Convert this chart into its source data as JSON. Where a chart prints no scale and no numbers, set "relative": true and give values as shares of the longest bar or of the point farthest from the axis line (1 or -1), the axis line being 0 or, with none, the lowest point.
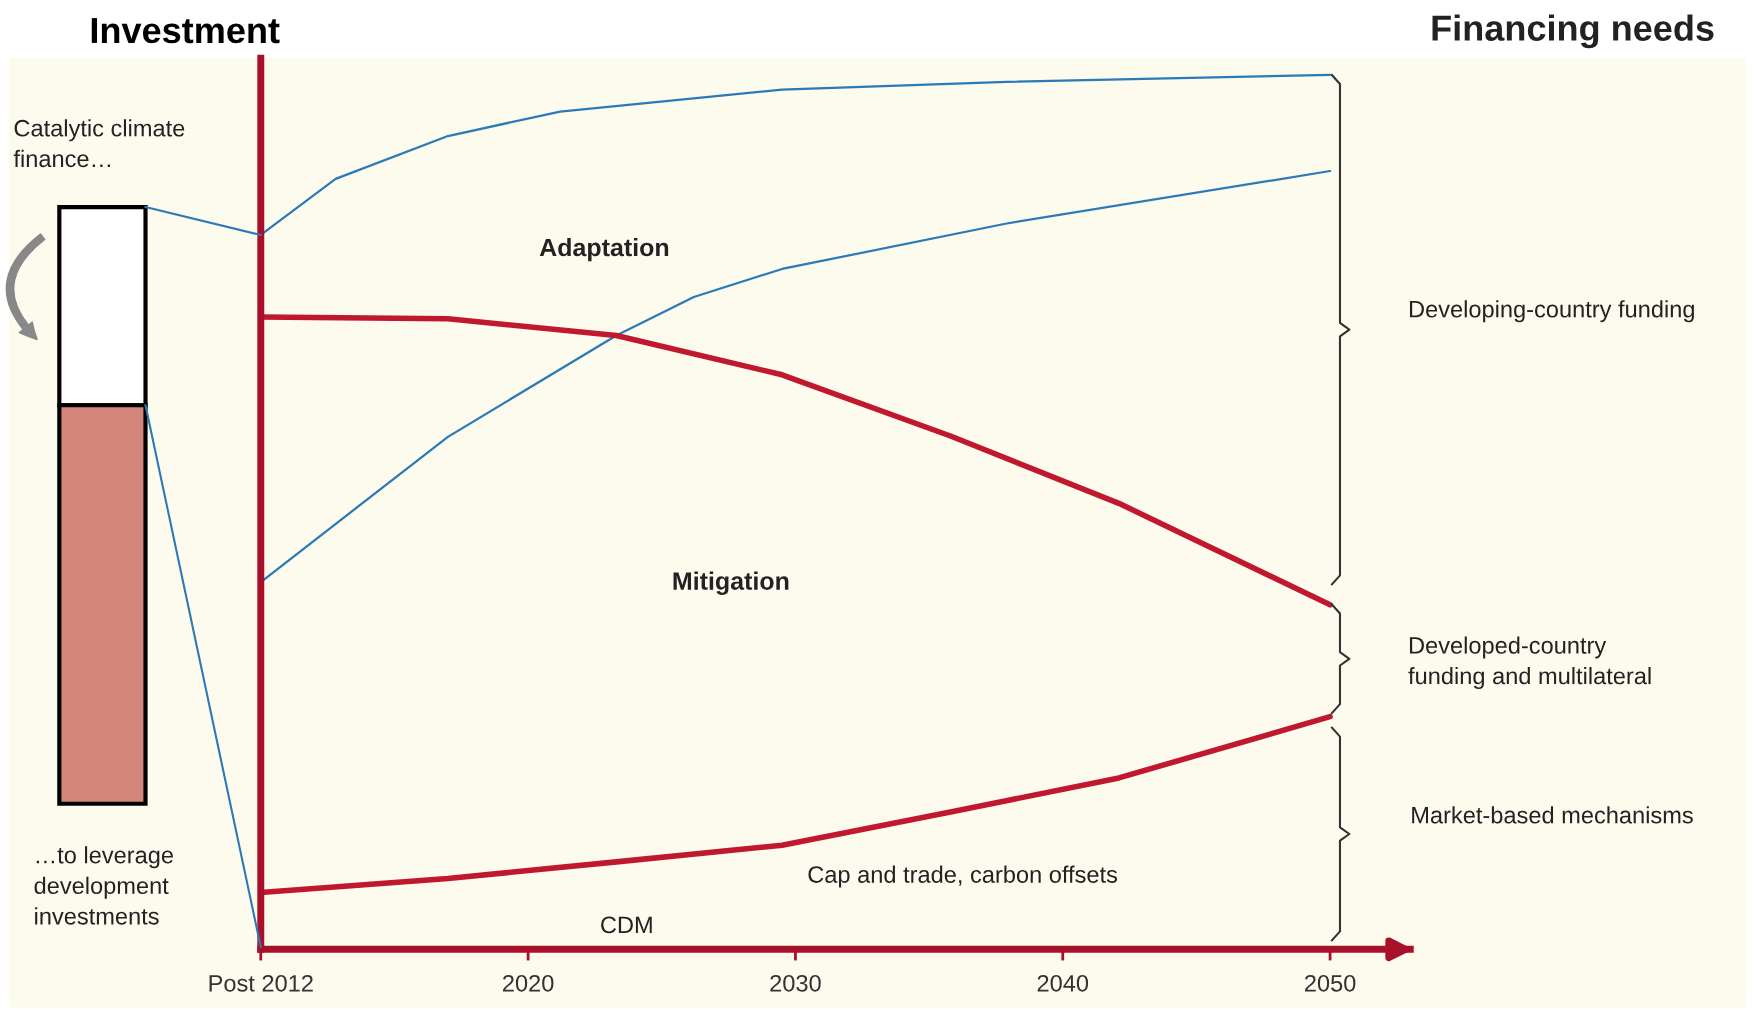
{
  "chart_data": {
    "type": "line",
    "relative": true,
    "ylabel": "Investment",
    "xlim": [
      2010,
      2053
    ],
    "xticks": [
      {
        "value": 2010,
        "label": "Post 2012"
      },
      2020,
      2030,
      2040,
      2050
    ],
    "series": [
      {
        "color": "#2a7ab8",
        "x": [
          2010,
          2012.8,
          2017.0,
          2021.2,
          2029.5,
          2037.9,
          2050
        ],
        "values": [
          0.817,
          0.881,
          0.93,
          0.958,
          0.983,
          0.992,
          1
        ]
      },
      {
        "color": "#2a7ab8",
        "x": [
          2010,
          2017.0,
          2023.3,
          2026.2,
          2029.5,
          2037.9,
          2050
        ],
        "values": [
          0.42,
          0.586,
          0.702,
          0.746,
          0.778,
          0.83,
          0.89
        ]
      },
      {
        "color": "#c0182e",
        "x": [
          2010,
          2017.0,
          2023.3,
          2029.5,
          2035.8,
          2042.1,
          2050
        ],
        "values": [
          0.723,
          0.721,
          0.702,
          0.657,
          0.587,
          0.51,
          0.394
        ]
      },
      {
        "color": "#c0182e",
        "x": [
          2010,
          2017.0,
          2023.3,
          2029.5,
          2035.8,
          2042.1,
          2050
        ],
        "values": [
          0.065,
          0.081,
          0.1,
          0.119,
          0.157,
          0.196,
          0.266
        ]
      }
    ],
    "annotations": [
      "Catalytic climate\nfinance…",
      "…to leverage\ndevelopment\ninvestments",
      "Adaptation",
      "Mitigation",
      "Cap and trade, carbon offsets",
      "CDM",
      "Developing-country funding",
      "Developed-country\nfunding and multilateral",
      "Market-based mechanisms",
      "Financing needs"
    ]
  }
}
